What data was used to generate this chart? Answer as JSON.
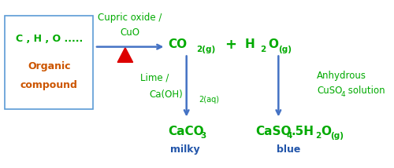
{
  "bg_color": "#ffffff",
  "box_color": "#5b9bd5",
  "green": "#00aa00",
  "blue": "#4472c4",
  "orange": "#cc5500",
  "red": "#dd0000",
  "dark_blue": "#2255aa",
  "box_text_line1": "C , H , O .....",
  "box_text_line2": "Organic",
  "box_text_line3": "compound",
  "cupric_line1": "Cupric oxide /",
  "cupric_line2": "CuO",
  "co2_main": "CO",
  "co2_sub": "2(g)",
  "plus": "+",
  "h2o_main": "H",
  "h2o_sub1": "2",
  "h2o_sub2": "O",
  "h2o_sub3": "(g)",
  "lime_line1": "Lime /",
  "lime_line2_main": "Ca(OH)",
  "lime_line2_sub": "2(aq)",
  "anhydrous_line1": "Anhydrous",
  "anhydrous_line2_main": "CuSO",
  "anhydrous_line2_sub": "4",
  "anhydrous_line3": " solution",
  "caco3_main": "CaCO",
  "caco3_sub": "3",
  "caco3_label": "milky",
  "caso4_main": "CaSO",
  "caso4_sub1": "4",
  "caso4_dot": ".5H",
  "caso4_sub2": "2",
  "caso4_o": "O",
  "caso4_sub3": "(g)",
  "caso4_label": "blue"
}
